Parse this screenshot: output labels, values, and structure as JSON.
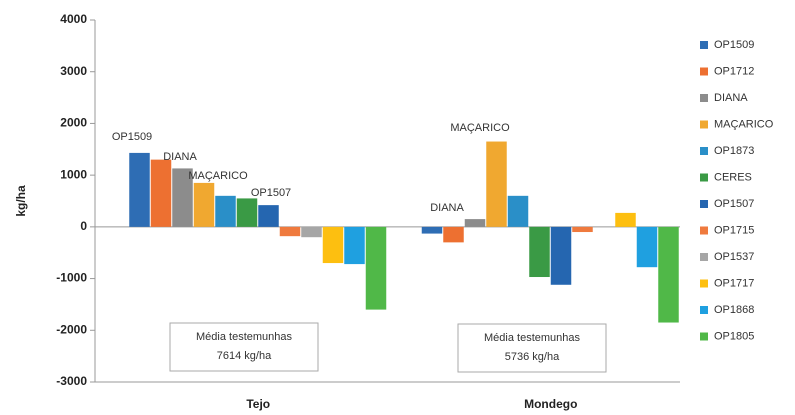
{
  "chart_data": {
    "type": "bar",
    "y_label": "kg/ha",
    "categories": [
      "Tejo",
      "Mondego"
    ],
    "series": [
      {
        "name": "OP1509",
        "color": "#2e6db4",
        "values": [
          1430,
          -130
        ]
      },
      {
        "name": "OP1712",
        "color": "#ed7031",
        "values": [
          1300,
          -300
        ]
      },
      {
        "name": "DIANA",
        "color": "#8c8c8c",
        "values": [
          1130,
          150
        ]
      },
      {
        "name": "MAÇARICO",
        "color": "#f0a830",
        "values": [
          850,
          1650
        ]
      },
      {
        "name": "OP1873",
        "color": "#2a8fc8",
        "values": [
          600,
          600
        ]
      },
      {
        "name": "CERES",
        "color": "#3a9a45",
        "values": [
          550,
          -970
        ]
      },
      {
        "name": "OP1507",
        "color": "#2566b0",
        "values": [
          420,
          -1120
        ]
      },
      {
        "name": "OP1715",
        "color": "#ef7a3e",
        "values": [
          -180,
          -100
        ]
      },
      {
        "name": "OP1537",
        "color": "#a6a6a6",
        "values": [
          -200,
          null
        ]
      },
      {
        "name": "OP1717",
        "color": "#fdbf10",
        "values": [
          -700,
          270
        ]
      },
      {
        "name": "OP1868",
        "color": "#1fa0e0",
        "values": [
          -720,
          -780
        ]
      },
      {
        "name": "OP1805",
        "color": "#50b848",
        "values": [
          -1600,
          -1850
        ]
      }
    ],
    "ylim": [
      -3000,
      4000
    ],
    "yticks": [
      -3000,
      -2000,
      -1000,
      0,
      1000,
      2000,
      3000,
      4000
    ],
    "grid": false,
    "legend": "right",
    "annotations": [
      "OP1509",
      "DIANA",
      "MAÇARICO",
      "OP1507",
      "DIANA",
      "MAÇARICO"
    ],
    "notes": [
      [
        "Média testemunhas",
        "7614 kg/ha"
      ],
      [
        "Média testemunhas",
        "5736 kg/ha"
      ]
    ]
  }
}
